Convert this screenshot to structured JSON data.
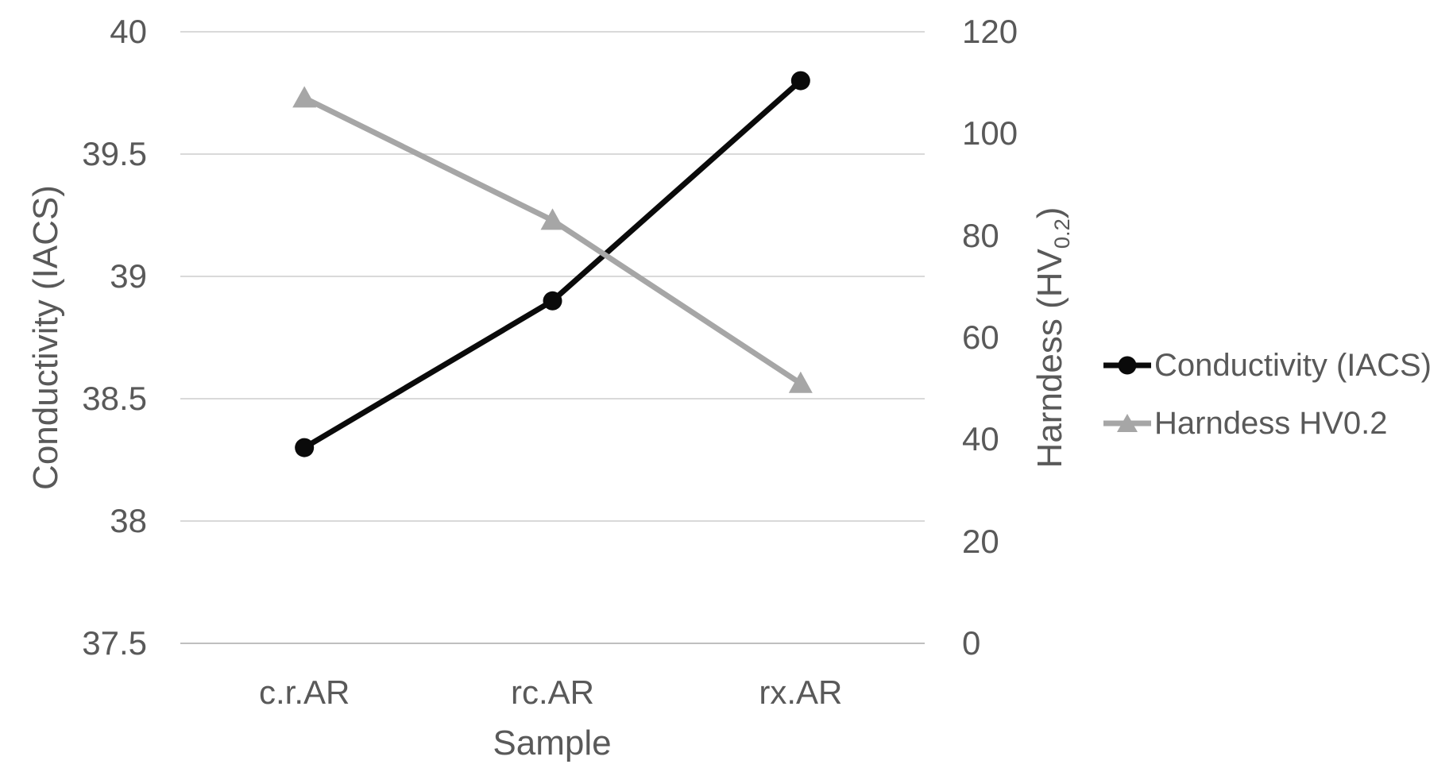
{
  "chart_data": {
    "type": "line",
    "categories": [
      "c.r.AR",
      "rc.AR",
      "rx.AR"
    ],
    "series": [
      {
        "name": "Conductivity (IACS)",
        "axis": "left",
        "values": [
          38.3,
          38.9,
          39.8
        ],
        "color": "#0a0a0a",
        "marker": "circle"
      },
      {
        "name": "Harndess HV0.2",
        "axis": "right",
        "values": [
          107,
          83,
          51
        ],
        "color": "#a6a6a6",
        "marker": "triangle"
      }
    ],
    "left_axis": {
      "title": "Conductivity (IACS)",
      "min": 37.5,
      "max": 40,
      "step": 0.5,
      "ticks": [
        "40",
        "39.5",
        "39",
        "38.5",
        "38",
        "37.5"
      ]
    },
    "right_axis": {
      "title_main": "Harndess (HV",
      "title_sub": "0.2",
      "title_close": ")",
      "min": 0,
      "max": 120,
      "step": 20,
      "ticks": [
        "120",
        "100",
        "80",
        "60",
        "40",
        "20",
        "0"
      ]
    },
    "x_axis": {
      "title": "Sample"
    },
    "legend_position": "right",
    "grid": true,
    "colors": {
      "text": "#595959",
      "gridline": "#d9d9d9",
      "axis_line": "#bfbfbf",
      "series_black": "#0a0a0a",
      "series_gray": "#a6a6a6",
      "background": "#ffffff"
    }
  }
}
